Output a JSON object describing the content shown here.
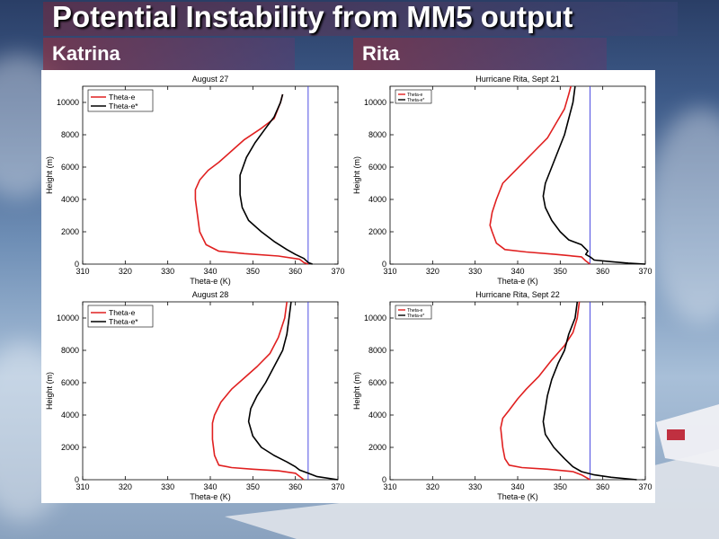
{
  "slide": {
    "title": "Potential Instability from MM5 output",
    "left_label": "Katrina",
    "right_label": "Rita"
  },
  "colors": {
    "theta_e": "#e02020",
    "theta_e_star": "#000000",
    "ref_line": "#3a3adf"
  },
  "chart_data": [
    {
      "type": "line",
      "title": "August 27",
      "xlabel": "Theta-e (K)",
      "ylabel": "Height (m)",
      "xlim": [
        310,
        370
      ],
      "ylim": [
        0,
        11000
      ],
      "xticks": [
        310,
        320,
        330,
        340,
        350,
        360,
        370
      ],
      "yticks": [
        0,
        2000,
        4000,
        6000,
        8000,
        10000
      ],
      "legend": [
        "Theta-e",
        "Theta-e*"
      ],
      "legend_position": "top-left",
      "ref_x": 363,
      "series": [
        {
          "name": "Theta-e",
          "points": [
            [
              363,
              0
            ],
            [
              362,
              100
            ],
            [
              361,
              300
            ],
            [
              356,
              500
            ],
            [
              348,
              650
            ],
            [
              342,
              800
            ],
            [
              339,
              1200
            ],
            [
              337.5,
              2000
            ],
            [
              337,
              3000
            ],
            [
              336.5,
              4000
            ],
            [
              336.5,
              4600
            ],
            [
              337.5,
              5200
            ],
            [
              339.5,
              5800
            ],
            [
              342,
              6300
            ],
            [
              345,
              7000
            ],
            [
              348,
              7700
            ],
            [
              352,
              8400
            ],
            [
              355,
              9000
            ],
            [
              356.5,
              10000
            ],
            [
              357,
              10500
            ]
          ]
        },
        {
          "name": "Theta-e*",
          "points": [
            [
              364,
              0
            ],
            [
              363,
              100
            ],
            [
              362,
              350
            ],
            [
              360,
              600
            ],
            [
              358,
              900
            ],
            [
              355,
              1400
            ],
            [
              352,
              2000
            ],
            [
              349,
              2700
            ],
            [
              347.5,
              3500
            ],
            [
              347,
              4300
            ],
            [
              347,
              5500
            ],
            [
              348.5,
              6600
            ],
            [
              350.5,
              7500
            ],
            [
              353,
              8400
            ],
            [
              355,
              9100
            ],
            [
              356.5,
              10000
            ],
            [
              357,
              10500
            ]
          ]
        }
      ]
    },
    {
      "type": "line",
      "title": "Hurricane Rita, Sept 21",
      "xlabel": "Theta-e (K)",
      "ylabel": "Height (m)",
      "xlim": [
        310,
        370
      ],
      "ylim": [
        0,
        11000
      ],
      "xticks": [
        310,
        320,
        330,
        340,
        350,
        360,
        370
      ],
      "yticks": [
        0,
        2000,
        4000,
        6000,
        8000,
        10000
      ],
      "legend": [
        "Theta-e",
        "Theta-e*"
      ],
      "legend_position": "top-left",
      "ref_x": 357,
      "series": [
        {
          "name": "Theta-e",
          "points": [
            [
              357,
              0
            ],
            [
              356,
              200
            ],
            [
              355,
              450
            ],
            [
              349,
              600
            ],
            [
              342,
              750
            ],
            [
              337,
              900
            ],
            [
              335,
              1300
            ],
            [
              334,
              2000
            ],
            [
              333.5,
              2400
            ],
            [
              334,
              3200
            ],
            [
              335,
              4000
            ],
            [
              336.5,
              5000
            ],
            [
              338,
              5400
            ],
            [
              341,
              6200
            ],
            [
              344,
              7000
            ],
            [
              347,
              7800
            ],
            [
              349,
              8700
            ],
            [
              351,
              9600
            ],
            [
              352,
              10500
            ],
            [
              352.5,
              11000
            ]
          ]
        },
        {
          "name": "Theta-e*",
          "points": [
            [
              370,
              0
            ],
            [
              366,
              60
            ],
            [
              362,
              150
            ],
            [
              358,
              250
            ],
            [
              357,
              450
            ],
            [
              356,
              600
            ],
            [
              356.5,
              800
            ],
            [
              355,
              1200
            ],
            [
              352,
              1500
            ],
            [
              350,
              2000
            ],
            [
              348,
              2700
            ],
            [
              346.5,
              3500
            ],
            [
              346,
              4200
            ],
            [
              346.5,
              5000
            ],
            [
              348,
              6000
            ],
            [
              349.5,
              7000
            ],
            [
              351,
              8000
            ],
            [
              352,
              9000
            ],
            [
              353,
              10000
            ],
            [
              353.5,
              11000
            ]
          ]
        }
      ]
    },
    {
      "type": "line",
      "title": "August 28",
      "xlabel": "Theta-e (K)",
      "ylabel": "Height (m)",
      "xlim": [
        310,
        370
      ],
      "ylim": [
        0,
        11000
      ],
      "xticks": [
        310,
        320,
        330,
        340,
        350,
        360,
        370
      ],
      "yticks": [
        0,
        2000,
        4000,
        6000,
        8000,
        10000
      ],
      "legend": [
        "Theta-e",
        "Theta-e*"
      ],
      "legend_position": "top-left",
      "ref_x": 363,
      "series": [
        {
          "name": "Theta-e",
          "points": [
            [
              362,
              0
            ],
            [
              361,
              200
            ],
            [
              360,
              400
            ],
            [
              356,
              550
            ],
            [
              350,
              650
            ],
            [
              345,
              750
            ],
            [
              342,
              900
            ],
            [
              341,
              1500
            ],
            [
              340.5,
              2500
            ],
            [
              340.5,
              3500
            ],
            [
              341,
              4000
            ],
            [
              342.5,
              4800
            ],
            [
              345,
              5600
            ],
            [
              348,
              6300
            ],
            [
              351,
              7000
            ],
            [
              354,
              7800
            ],
            [
              356,
              8800
            ],
            [
              357.5,
              10000
            ],
            [
              358,
              11000
            ]
          ]
        },
        {
          "name": "Theta-e*",
          "points": [
            [
              370,
              0
            ],
            [
              365,
              200
            ],
            [
              363,
              400
            ],
            [
              361,
              600
            ],
            [
              360,
              800
            ],
            [
              358,
              1100
            ],
            [
              355,
              1500
            ],
            [
              352,
              2000
            ],
            [
              350,
              2700
            ],
            [
              349,
              3600
            ],
            [
              349.5,
              4400
            ],
            [
              351,
              5200
            ],
            [
              353,
              6000
            ],
            [
              355,
              7000
            ],
            [
              357,
              8000
            ],
            [
              358,
              9000
            ],
            [
              358.5,
              10000
            ],
            [
              359,
              11000
            ]
          ]
        }
      ]
    },
    {
      "type": "line",
      "title": "Hurricane Rita, Sept 22",
      "xlabel": "Theta-e (K)",
      "ylabel": "Height (m)",
      "xlim": [
        310,
        370
      ],
      "ylim": [
        0,
        11000
      ],
      "xticks": [
        310,
        320,
        330,
        340,
        350,
        360,
        370
      ],
      "yticks": [
        0,
        2000,
        4000,
        6000,
        8000,
        10000
      ],
      "legend": [
        "Theta-e",
        "Theta-e*"
      ],
      "legend_position": "top-left",
      "ref_x": 357,
      "series": [
        {
          "name": "Theta-e",
          "points": [
            [
              357,
              0
            ],
            [
              355,
              300
            ],
            [
              353,
              500
            ],
            [
              347,
              650
            ],
            [
              341,
              750
            ],
            [
              338,
              900
            ],
            [
              337,
              1300
            ],
            [
              336.5,
              2000
            ],
            [
              336,
              3200
            ],
            [
              336.5,
              3800
            ],
            [
              338,
              4300
            ],
            [
              340,
              5000
            ],
            [
              342,
              5600
            ],
            [
              345,
              6400
            ],
            [
              348,
              7400
            ],
            [
              351,
              8300
            ],
            [
              353,
              9100
            ],
            [
              354,
              10000
            ],
            [
              354.5,
              11000
            ]
          ]
        },
        {
          "name": "Theta-e*",
          "points": [
            [
              368,
              0
            ],
            [
              362,
              150
            ],
            [
              358,
              300
            ],
            [
              355,
              500
            ],
            [
              353,
              800
            ],
            [
              351,
              1300
            ],
            [
              348.5,
              2000
            ],
            [
              346.5,
              2800
            ],
            [
              346,
              3600
            ],
            [
              346.5,
              4400
            ],
            [
              347,
              5200
            ],
            [
              348,
              6200
            ],
            [
              349.5,
              7200
            ],
            [
              351,
              8000
            ],
            [
              352,
              9000
            ],
            [
              353.5,
              10000
            ],
            [
              354,
              11000
            ]
          ]
        }
      ]
    }
  ]
}
